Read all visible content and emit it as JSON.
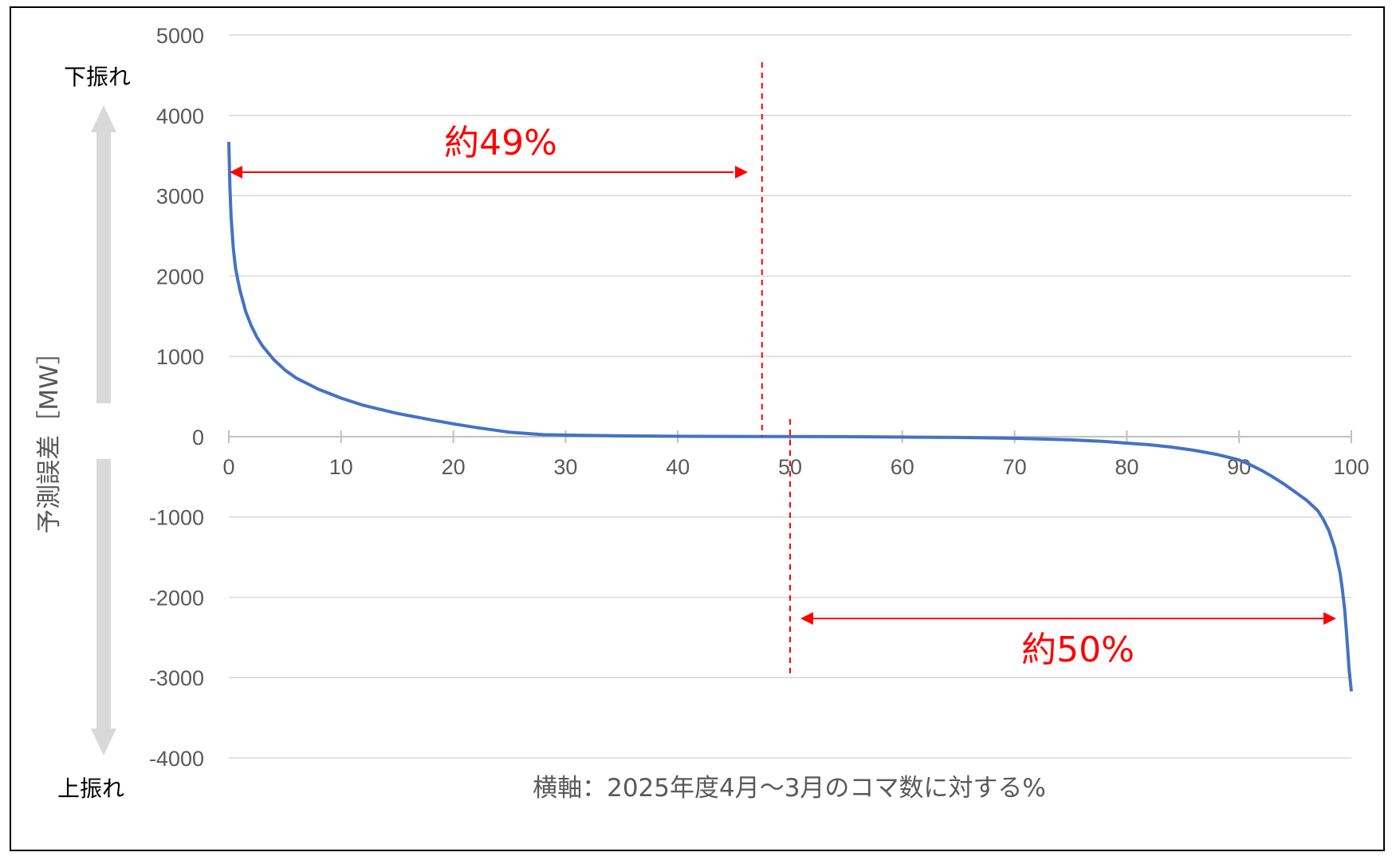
{
  "chart_data": {
    "type": "line",
    "title": "",
    "xlabel": "横軸：2025年度4月～3月のコマ数に対する%",
    "ylabel": "予測誤差［MW］",
    "xlim": [
      0,
      100
    ],
    "ylim": [
      -4000,
      5000
    ],
    "x_ticks": [
      0,
      10,
      20,
      30,
      40,
      50,
      60,
      70,
      80,
      90,
      100
    ],
    "y_ticks": [
      5000,
      4000,
      3000,
      2000,
      1000,
      0,
      -1000,
      -2000,
      -3000,
      -4000
    ],
    "grid": true,
    "legend": "none",
    "series": [
      {
        "color": "#4472c4",
        "x": [
          0,
          0.1,
          0.2,
          0.4,
          0.6,
          0.8,
          1,
          1.5,
          2,
          2.5,
          3,
          4,
          5,
          6,
          8,
          10,
          12,
          15,
          18,
          20,
          22,
          25,
          28,
          30,
          35,
          40,
          45,
          50,
          55,
          60,
          65,
          70,
          75,
          78,
          80,
          82,
          84,
          86,
          88,
          90,
          91,
          92,
          93,
          94,
          95,
          96,
          97,
          97.5,
          98,
          98.5,
          99,
          99.2,
          99.4,
          99.6,
          99.8,
          100
        ],
        "y": [
          3670,
          3100,
          2750,
          2350,
          2100,
          1950,
          1820,
          1560,
          1380,
          1240,
          1130,
          960,
          830,
          730,
          590,
          480,
          390,
          290,
          210,
          160,
          115,
          55,
          25,
          20,
          10,
          5,
          3,
          2,
          0,
          -5,
          -10,
          -20,
          -40,
          -60,
          -80,
          -100,
          -130,
          -170,
          -220,
          -290,
          -350,
          -420,
          -500,
          -590,
          -690,
          -790,
          -920,
          -1030,
          -1170,
          -1380,
          -1700,
          -1900,
          -2150,
          -2500,
          -2900,
          -3170
        ]
      }
    ],
    "annotations": {
      "upper_label": "下振れ",
      "lower_label": "上振れ",
      "left_span_label": "約49%",
      "right_span_label": "約50%",
      "left_cut_x": 47.5,
      "right_cut_x": 50,
      "annotation_color": "#ff0000",
      "arrow_color": "#d9d9d9"
    }
  }
}
